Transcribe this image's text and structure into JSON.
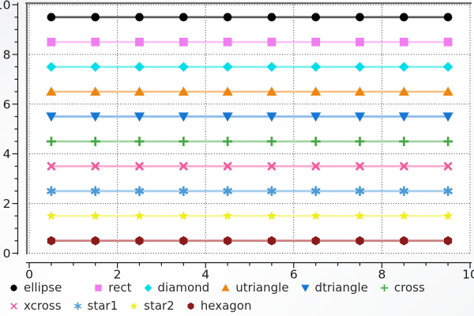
{
  "chart_data": {
    "type": "line",
    "title": "",
    "xlabel": "",
    "ylabel": "",
    "x": [
      0.5,
      1.5,
      2.5,
      3.5,
      4.5,
      5.5,
      6.5,
      7.5,
      8.5,
      9.5
    ],
    "series": [
      {
        "name": "ellipse",
        "shape": "ellipse",
        "y": 9.5,
        "marker_color": "#000000",
        "line_color": "#5e5e5e"
      },
      {
        "name": "rect",
        "shape": "rect",
        "y": 8.5,
        "marker_color": "#f07ef0",
        "line_color": "#f9c2f9"
      },
      {
        "name": "diamond",
        "shape": "diamond",
        "y": 7.5,
        "marker_color": "#00dfe8",
        "line_color": "#82f0ee"
      },
      {
        "name": "utriangle",
        "shape": "utriangle",
        "y": 6.5,
        "marker_color": "#ee8611",
        "line_color": "#f6c084"
      },
      {
        "name": "dtriangle",
        "shape": "dtriangle",
        "y": 5.5,
        "marker_color": "#1777d3",
        "line_color": "#8cbbe9"
      },
      {
        "name": "cross",
        "shape": "cross",
        "y": 4.5,
        "marker_color": "#44a944",
        "line_color": "#a2d4a2"
      },
      {
        "name": "xcross",
        "shape": "xcross",
        "y": 3.5,
        "marker_color": "#f0599c",
        "line_color": "#f7abcd"
      },
      {
        "name": "star1",
        "shape": "star1",
        "y": 2.5,
        "marker_color": "#4d9bd7",
        "line_color": "#a6cdeb"
      },
      {
        "name": "star2",
        "shape": "star2",
        "y": 1.5,
        "marker_color": "#eeee22",
        "line_color": "#f7f796"
      },
      {
        "name": "hexagon",
        "shape": "hexagon",
        "y": 0.5,
        "marker_color": "#8b1a1a",
        "line_color": "#c97f7f"
      }
    ],
    "xlim": [
      -0.07,
      10.07
    ],
    "ylim": [
      -0.05,
      10.1
    ],
    "xticks": {
      "major": [
        0,
        2,
        4,
        6,
        8,
        10
      ],
      "labels": [
        "0",
        "2",
        "4",
        "6",
        "8",
        "10"
      ],
      "minor_step": 0.5
    },
    "yticks": {
      "major": [
        0,
        2,
        4,
        6,
        8,
        10
      ],
      "labels": [
        "0",
        "2",
        "4",
        "6",
        "8",
        "10"
      ],
      "minor_step": 0.5
    },
    "grid": {
      "on": true,
      "style": "dotted",
      "color": "#3c3c3c",
      "at_major_ticks": true
    },
    "legend": {
      "position": "bottom"
    }
  },
  "colors": {
    "frame": "#6b6b6b",
    "axis": "#1a1a1a",
    "tick_label": "#1a1a1a",
    "plot_bg": "#ffffff"
  }
}
